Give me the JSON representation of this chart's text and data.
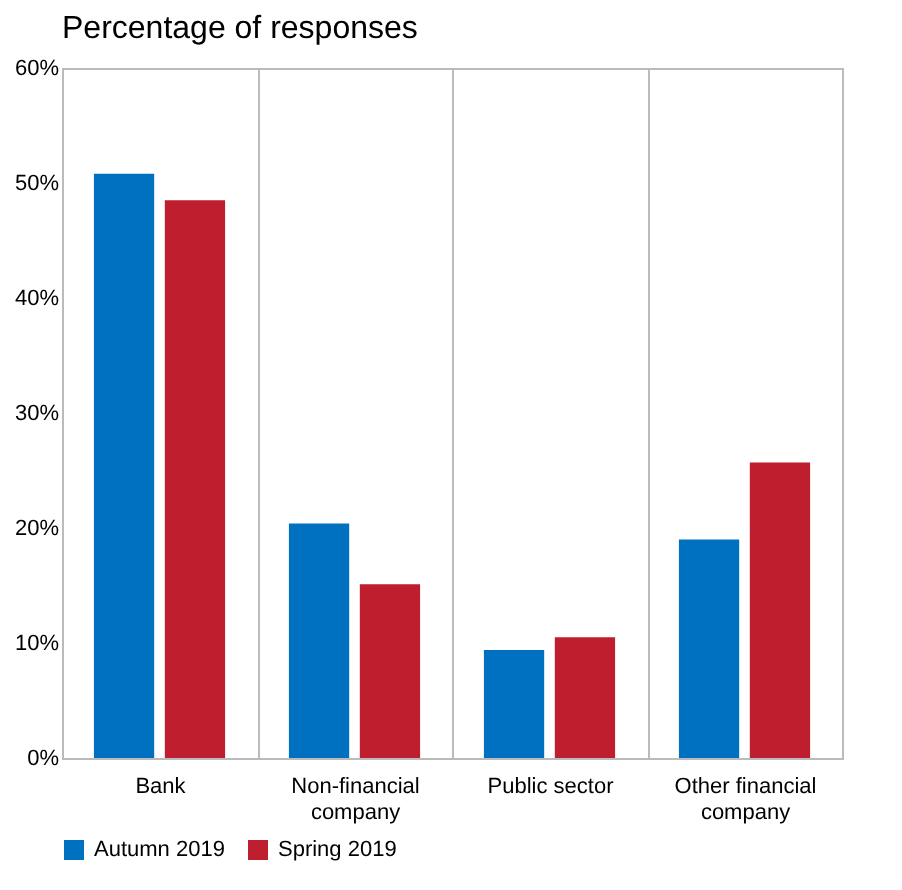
{
  "chart_data": {
    "type": "bar",
    "title": "Percentage of responses",
    "categories": [
      "Bank",
      "Non-financial company",
      "Public sector",
      "Other financial company"
    ],
    "series": [
      {
        "name": "Autumn 2019",
        "color": "#0070c0",
        "values": [
          50.8,
          20.4,
          9.4,
          19.0
        ]
      },
      {
        "name": "Spring 2019",
        "color": "#be1e2d",
        "values": [
          48.5,
          15.1,
          10.5,
          25.7
        ]
      }
    ],
    "ylim": [
      0,
      60
    ],
    "yticks": [
      {
        "value": 0,
        "label": "0%"
      },
      {
        "value": 10,
        "label": "10%"
      },
      {
        "value": 20,
        "label": "20%"
      },
      {
        "value": 30,
        "label": "30%"
      },
      {
        "value": 40,
        "label": "40%"
      },
      {
        "value": 50,
        "label": "50%"
      },
      {
        "value": 60,
        "label": "60%"
      }
    ],
    "grid": "x",
    "legend": "bottom"
  }
}
